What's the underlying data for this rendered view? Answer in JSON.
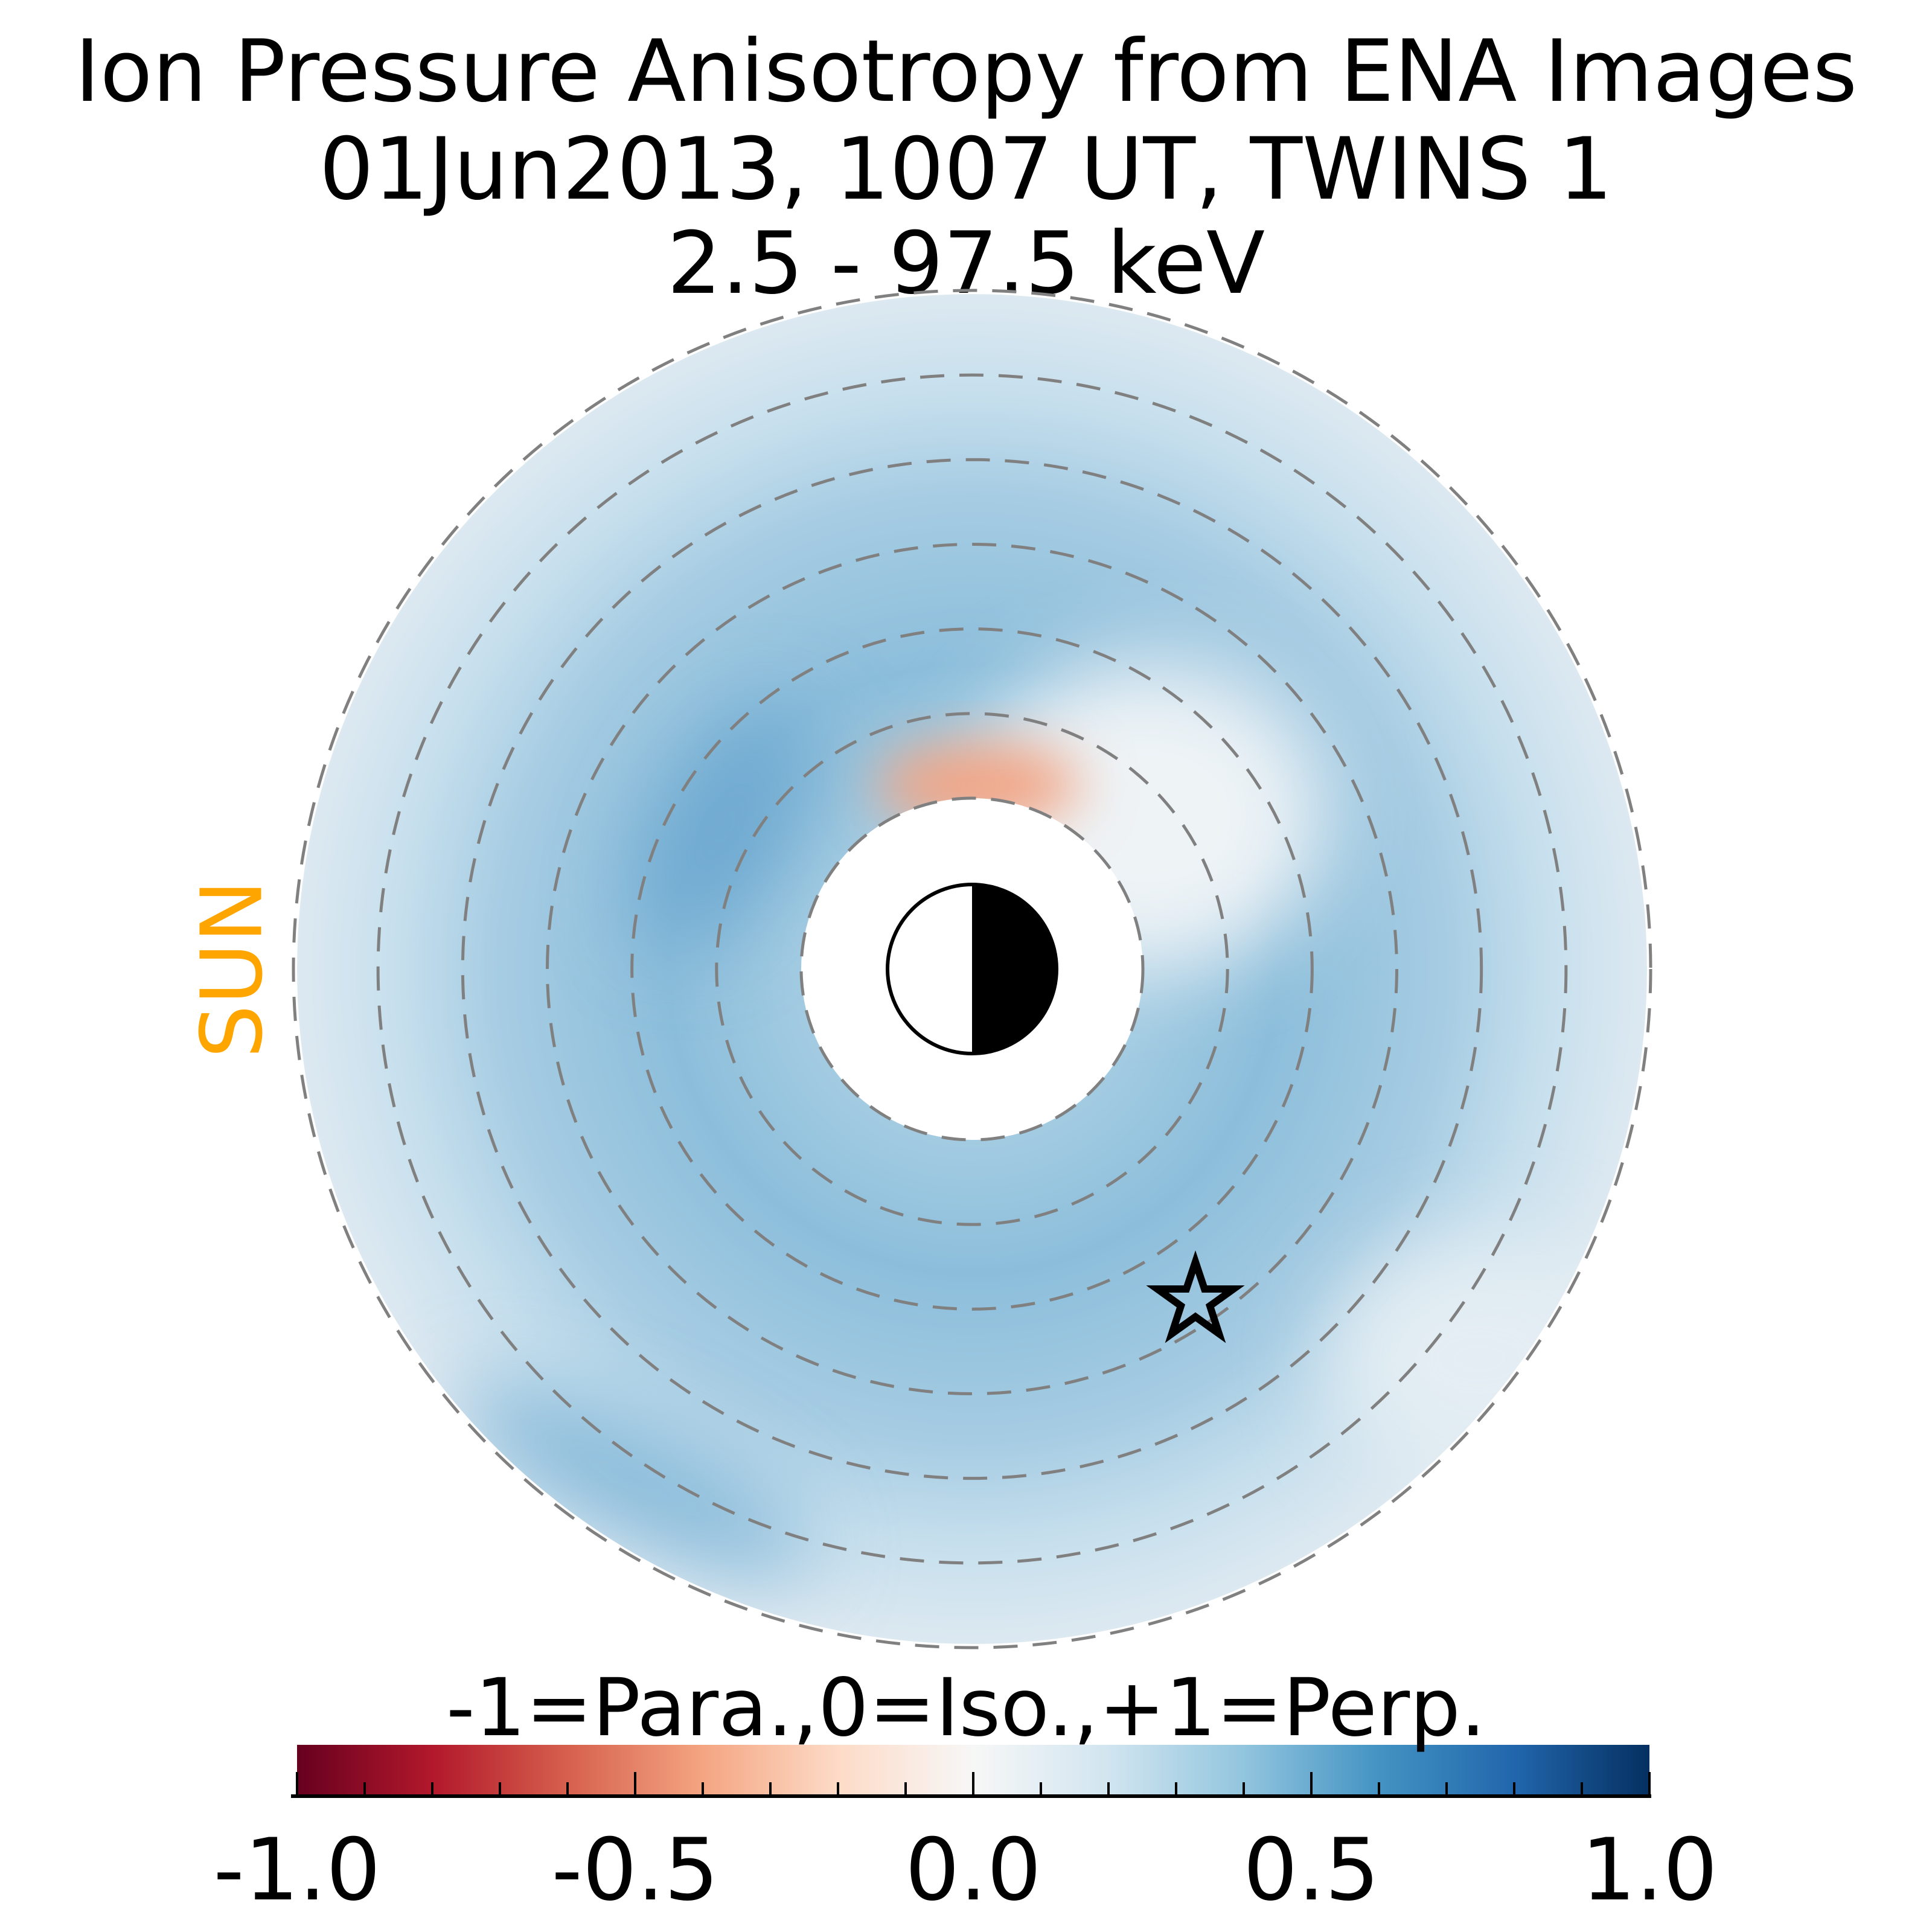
{
  "chart_data": {
    "type": "heatmap",
    "projection": "polar equatorial plane, Earth at center",
    "title": [
      "Ion Pressure Anisotropy from  ENA Images",
      "01Jun2013, 1007 UT,  TWINS 1",
      "2.5 - 97.5 keV"
    ],
    "sun_label": "SUN",
    "sun_direction": "left",
    "colorbar": {
      "label": "-1=Para.,0=Iso.,+1=Perp.",
      "colormap": "RdBu",
      "range": [
        -1.0,
        1.0
      ],
      "ticks": [
        -1.0,
        -0.5,
        0.0,
        0.5,
        1.0
      ],
      "tick_labels": [
        "-1.0",
        "-0.5",
        "0.0",
        "0.5",
        "1.0"
      ],
      "minor_tick_step": 0.1
    },
    "dashed_circles_count": 7,
    "features": {
      "typical_value": 0.3,
      "max_value_dawn_side": 0.55,
      "min_value_noon_side_near_earth": -0.3,
      "spacecraft_marker": "star"
    }
  },
  "colors": {
    "sun": "#ffa500",
    "dashes": "#808080"
  }
}
